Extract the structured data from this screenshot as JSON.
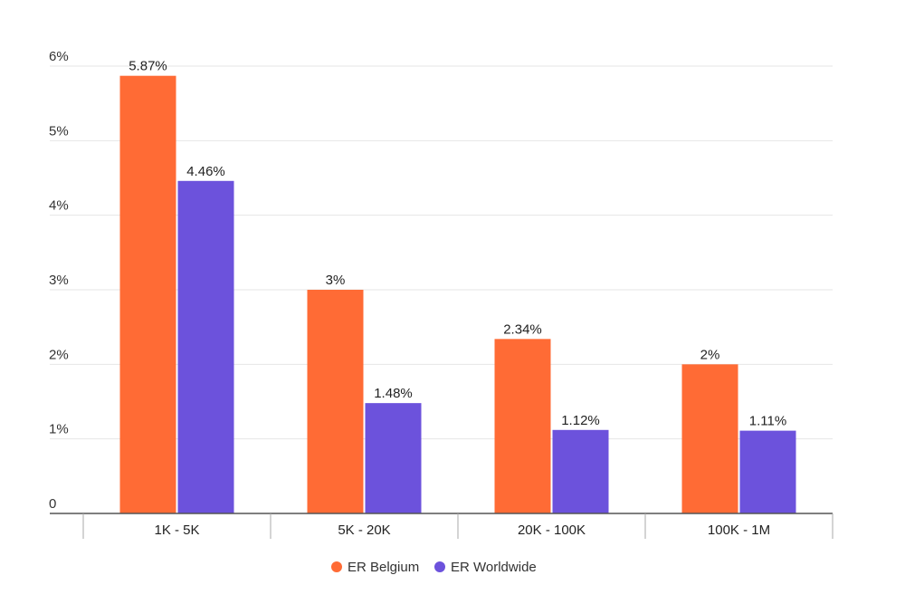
{
  "colors": {
    "er_belgium": "#FF6B35",
    "er_worldwide": "#6C52DC",
    "grid": "#e6e6e6",
    "axis": "#555555"
  },
  "chart_data": {
    "type": "bar",
    "title": "",
    "xlabel": "",
    "ylabel": "",
    "categories": [
      "1K - 5K",
      "5K - 20K",
      "20K - 100K",
      "100K - 1M"
    ],
    "series": [
      {
        "name": "ER Belgium",
        "values": [
          5.87,
          3,
          2.34,
          2
        ],
        "labels": [
          "5.87%",
          "3%",
          "2.34%",
          "2%"
        ]
      },
      {
        "name": "ER Worldwide",
        "values": [
          4.46,
          1.48,
          1.12,
          1.11
        ],
        "labels": [
          "4.46%",
          "1.48%",
          "1.12%",
          "1.11%"
        ]
      }
    ],
    "ylim": [
      0,
      6
    ],
    "yticks": [
      0,
      1,
      2,
      3,
      4,
      5,
      6
    ],
    "ytick_labels": [
      "0",
      "1%",
      "2%",
      "3%",
      "4%",
      "5%",
      "6%"
    ],
    "grid": true,
    "legend_position": "bottom-center"
  }
}
